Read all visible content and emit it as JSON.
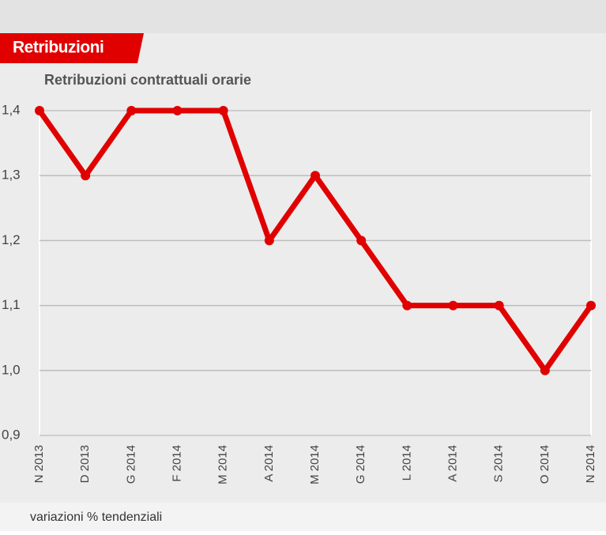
{
  "header": {
    "tab": "Retribuzioni"
  },
  "chart_data": {
    "type": "line",
    "title": "Retribuzioni contrattuali orarie",
    "footnote": "variazioni % tendenziali",
    "categories": [
      "N 2013",
      "D 2013",
      "G 2014",
      "F 2014",
      "M 2014",
      "A 2014",
      "M 2014",
      "G 2014",
      "L 2014",
      "A 2014",
      "S 2014",
      "O 2014",
      "N 2014"
    ],
    "values": [
      1.4,
      1.3,
      1.4,
      1.4,
      1.4,
      1.2,
      1.3,
      1.2,
      1.1,
      1.1,
      1.1,
      1.0,
      1.1
    ],
    "color": "#e10000",
    "ylim": [
      0.9,
      1.4
    ],
    "yticks": [
      {
        "value": 0.9,
        "label": "0,9"
      },
      {
        "value": 1.0,
        "label": "1,0"
      },
      {
        "value": 1.1,
        "label": "1,1"
      },
      {
        "value": 1.2,
        "label": "1,2"
      },
      {
        "value": 1.3,
        "label": "1,3"
      },
      {
        "value": 1.4,
        "label": "1,4"
      }
    ],
    "grid": true
  }
}
